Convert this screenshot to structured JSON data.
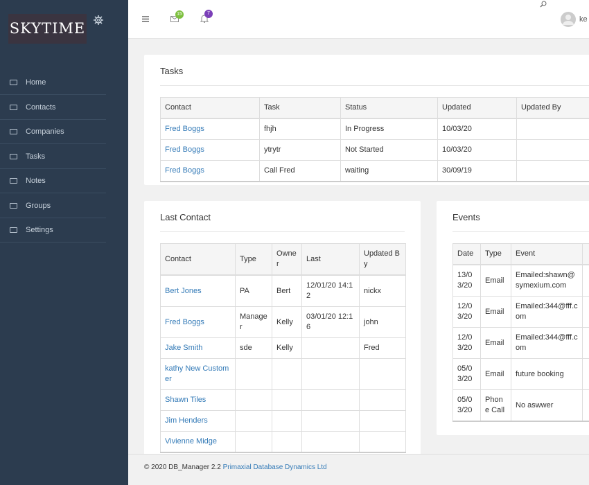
{
  "sidebar": {
    "logo": "SKYTIME",
    "nav": [
      "Home",
      "Contacts",
      "Companies",
      "Tasks",
      "Notes",
      "Groups",
      "Settings"
    ]
  },
  "topbar": {
    "mail_count": "15",
    "notification_count": "7",
    "user": "ke"
  },
  "tasks": {
    "title": "Tasks",
    "columns": [
      "Contact",
      "Task",
      "Status",
      "Updated",
      "Updated By"
    ],
    "rows": [
      [
        "Fred Boggs",
        "fhjh",
        "In Progress",
        "10/03/20"
      ],
      [
        "Fred Boggs",
        "ytrytr",
        "Not Started",
        "10/03/20"
      ],
      [
        "Fred Boggs",
        "Call Fred",
        "waiting",
        "30/09/19"
      ]
    ]
  },
  "last_contact": {
    "title": "Last Contact",
    "columns": [
      "Contact",
      "Type",
      "Owner",
      "Last",
      "Updated By"
    ],
    "rows": [
      [
        "Bert Jones",
        "PA",
        "Bert",
        "12/01/20 14:12",
        "nickx"
      ],
      [
        "Fred Boggs",
        "Manager",
        "Kelly",
        "03/01/20 12:16",
        "john"
      ],
      [
        "Jake Smith",
        "sde",
        "Kelly",
        null,
        "Fred"
      ],
      [
        "kathy New Customer"
      ],
      [
        "Shawn Tiles"
      ],
      [
        "Jim Henders"
      ],
      [
        "Vivienne Midge"
      ]
    ]
  },
  "events": {
    "title": "Events",
    "columns": [
      "Date",
      "Type",
      "Event"
    ],
    "rows": [
      [
        "13/03/20",
        "Email",
        "Emailed:shawn@symexium.com"
      ],
      [
        "12/03/20",
        "Email",
        "Emailed:344@fff.com"
      ],
      [
        "12/03/20",
        "Email",
        "Emailed:344@fff.com"
      ],
      [
        "05/03/20",
        "Email",
        "future booking"
      ],
      [
        "05/03/20",
        "Phone Call",
        "No aswwer"
      ]
    ]
  },
  "footer": {
    "copyright": "© 2020 DB_Manager 2.2",
    "company": "Primaxial Database Dynamics Ltd"
  }
}
